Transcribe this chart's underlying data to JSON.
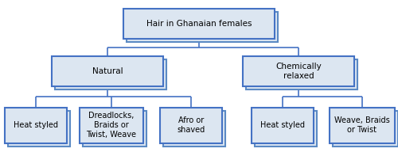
{
  "title": "Hair in Ghanaian females",
  "level1": [
    "Natural",
    "Chemically\nrelaxed"
  ],
  "level2": [
    "Heat styled",
    "Dreadlocks,\nBraids or\nTwist, Weave",
    "Afro or\nshaved",
    "Heat styled",
    "Weave, Braids\nor Twist"
  ],
  "box_fill": "#dce6f1",
  "box_edge": "#4472c4",
  "box_shadow_fill": "#5b8ac4",
  "line_color": "#4472c4",
  "bg_color": "#ffffff",
  "text_color": "#000000",
  "fontsize_root": 7.5,
  "fontsize_l1": 7.5,
  "fontsize_l2": 7.0,
  "fig_w": 5.0,
  "fig_h": 1.97,
  "dpi": 100
}
